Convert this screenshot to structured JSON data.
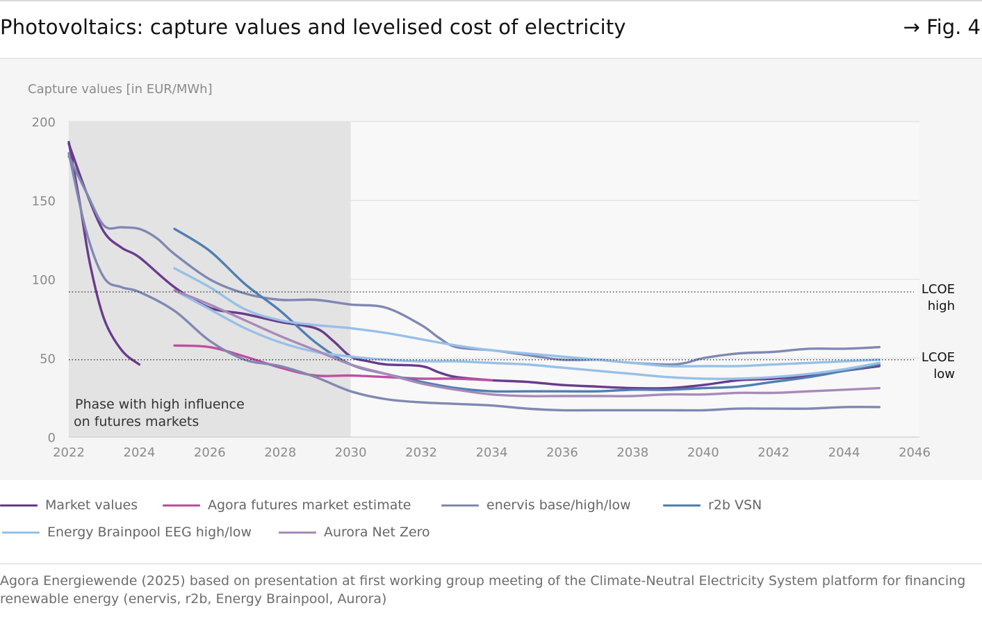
{
  "header": {
    "title": "Photovoltaics: capture values and levelised cost of electricity",
    "figure_ref": "→ Fig. 4"
  },
  "source": "Agora Energiewende (2025) based on presentation at first working group meeting of the Climate-Neutral Electricity System platform for financing renewable energy (enervis, r2b, Energy Brainpool, Aurora)",
  "chart_data": {
    "type": "line",
    "ylabel": "Capture values [in EUR/MWh]",
    "xlabel": "",
    "xlim": [
      2022,
      2046
    ],
    "ylim": [
      0,
      200
    ],
    "x_ticks": [
      2022,
      2024,
      2026,
      2028,
      2030,
      2032,
      2034,
      2036,
      2038,
      2040,
      2042,
      2044,
      2046
    ],
    "y_ticks": [
      0,
      50,
      100,
      150,
      200
    ],
    "grid": true,
    "shaded_region": {
      "x": [
        2022,
        2030
      ],
      "label_lines": [
        "Phase with high influence",
        "on futures markets"
      ]
    },
    "reference_lines": [
      {
        "y": 92,
        "label_lines": [
          "LCOE",
          "high"
        ]
      },
      {
        "y": 49,
        "label_lines": [
          "LCOE",
          "low"
        ]
      }
    ],
    "legend_items": [
      {
        "name": "Market values",
        "color": "#6a3a8c"
      },
      {
        "name": "Agora futures market estimate",
        "color": "#c04f9e"
      },
      {
        "name": "enervis base/high/low",
        "color": "#8088b2"
      },
      {
        "name": "r2b VSN",
        "color": "#4f7fb2"
      },
      {
        "name": "Energy Brainpool EEG high/low",
        "color": "#97c0e6"
      },
      {
        "name": "Aurora Net Zero",
        "color": "#a68bb8"
      }
    ],
    "series": [
      {
        "name": "Market values",
        "color": "#6a3a8c",
        "points": [
          [
            2022,
            187
          ],
          [
            2022.3,
            150
          ],
          [
            2022.6,
            110
          ],
          [
            2023,
            75
          ],
          [
            2023.5,
            55
          ],
          [
            2024,
            46
          ]
        ]
      },
      {
        "name": "Market values",
        "color": "#6a3a8c",
        "points": [
          [
            2022,
            186
          ],
          [
            2022.5,
            155
          ],
          [
            2023,
            130
          ],
          [
            2023.5,
            120
          ],
          [
            2024,
            114
          ],
          [
            2025,
            95
          ],
          [
            2026,
            82
          ],
          [
            2027,
            78
          ],
          [
            2028,
            73
          ],
          [
            2029,
            69
          ],
          [
            2029.5,
            61
          ],
          [
            2030,
            51
          ],
          [
            2030.5,
            48
          ],
          [
            2031,
            46
          ],
          [
            2032,
            45
          ],
          [
            2032.5,
            41
          ],
          [
            2033,
            38
          ],
          [
            2034,
            36
          ],
          [
            2035,
            35
          ],
          [
            2036,
            33
          ],
          [
            2037,
            32
          ],
          [
            2038,
            31
          ],
          [
            2039,
            31
          ],
          [
            2040,
            33
          ],
          [
            2041,
            36
          ],
          [
            2042,
            37
          ],
          [
            2043,
            39
          ],
          [
            2044,
            42
          ],
          [
            2045,
            45
          ]
        ]
      },
      {
        "name": "Agora futures market estimate",
        "color": "#c04f9e",
        "points": [
          [
            2025,
            58
          ],
          [
            2026,
            57
          ],
          [
            2027,
            51
          ],
          [
            2028,
            44
          ],
          [
            2029,
            39
          ],
          [
            2030,
            39
          ],
          [
            2031,
            38
          ],
          [
            2032,
            37
          ],
          [
            2033,
            37
          ],
          [
            2034,
            36
          ]
        ]
      },
      {
        "name": "enervis base/high/low",
        "color": "#8088b2",
        "points": [
          [
            2022,
            178
          ],
          [
            2022.5,
            155
          ],
          [
            2023,
            134
          ],
          [
            2023.5,
            133
          ],
          [
            2024,
            132
          ],
          [
            2024.5,
            126
          ],
          [
            2025,
            116
          ],
          [
            2026,
            100
          ],
          [
            2027,
            91
          ],
          [
            2028,
            87
          ],
          [
            2029,
            87
          ],
          [
            2030,
            84
          ],
          [
            2031,
            82
          ],
          [
            2032,
            71
          ],
          [
            2032.5,
            63
          ],
          [
            2033,
            57
          ],
          [
            2034,
            55
          ],
          [
            2035,
            52
          ],
          [
            2036,
            49
          ],
          [
            2037,
            49
          ],
          [
            2038,
            47
          ],
          [
            2039,
            46
          ],
          [
            2039.5,
            47
          ],
          [
            2040,
            50
          ],
          [
            2041,
            53
          ],
          [
            2042,
            54
          ],
          [
            2043,
            56
          ],
          [
            2044,
            56
          ],
          [
            2045,
            57
          ]
        ]
      },
      {
        "name": "enervis base/high/low",
        "color": "#8088b2",
        "points": [
          [
            2022,
            180
          ],
          [
            2022.5,
            130
          ],
          [
            2023,
            101
          ],
          [
            2023.5,
            95
          ],
          [
            2024,
            92
          ],
          [
            2025,
            80
          ],
          [
            2026,
            61
          ],
          [
            2027,
            49
          ],
          [
            2028,
            45
          ],
          [
            2029,
            38
          ],
          [
            2030,
            29
          ],
          [
            2031,
            24
          ],
          [
            2032,
            22
          ],
          [
            2033,
            21
          ],
          [
            2034,
            20
          ],
          [
            2035,
            18
          ],
          [
            2036,
            17
          ],
          [
            2037,
            17
          ],
          [
            2038,
            17
          ],
          [
            2039,
            17
          ],
          [
            2040,
            17
          ],
          [
            2041,
            18
          ],
          [
            2042,
            18
          ],
          [
            2043,
            18
          ],
          [
            2044,
            19
          ],
          [
            2045,
            19
          ]
        ]
      },
      {
        "name": "r2b VSN",
        "color": "#4f7fb2",
        "points": [
          [
            2025,
            132
          ],
          [
            2026,
            118
          ],
          [
            2027,
            97
          ],
          [
            2028,
            80
          ],
          [
            2029,
            60
          ],
          [
            2030,
            46
          ],
          [
            2031,
            40
          ],
          [
            2032,
            35
          ],
          [
            2033,
            31
          ],
          [
            2034,
            29
          ],
          [
            2035,
            29
          ],
          [
            2036,
            29
          ],
          [
            2037,
            29
          ],
          [
            2038,
            30
          ],
          [
            2039,
            30
          ],
          [
            2040,
            31
          ],
          [
            2041,
            32
          ],
          [
            2042,
            35
          ],
          [
            2043,
            38
          ],
          [
            2044,
            42
          ],
          [
            2045,
            46
          ]
        ]
      },
      {
        "name": "Energy Brainpool EEG high/low",
        "color": "#97c0e6",
        "points": [
          [
            2025,
            107
          ],
          [
            2026,
            95
          ],
          [
            2027,
            81
          ],
          [
            2028,
            74
          ],
          [
            2029,
            71
          ],
          [
            2030,
            69
          ],
          [
            2031,
            66
          ],
          [
            2032,
            62
          ],
          [
            2033,
            58
          ],
          [
            2034,
            55
          ],
          [
            2035,
            53
          ],
          [
            2036,
            51
          ],
          [
            2037,
            49
          ],
          [
            2038,
            47
          ],
          [
            2039,
            45
          ],
          [
            2040,
            45
          ],
          [
            2041,
            45
          ],
          [
            2042,
            46
          ],
          [
            2043,
            47
          ],
          [
            2044,
            48
          ],
          [
            2045,
            49
          ]
        ]
      },
      {
        "name": "Energy Brainpool EEG high/low",
        "color": "#97c0e6",
        "points": [
          [
            2025,
            93
          ],
          [
            2026,
            81
          ],
          [
            2027,
            69
          ],
          [
            2028,
            60
          ],
          [
            2029,
            54
          ],
          [
            2030,
            51
          ],
          [
            2031,
            49
          ],
          [
            2032,
            48
          ],
          [
            2033,
            48
          ],
          [
            2034,
            47
          ],
          [
            2035,
            46
          ],
          [
            2036,
            44
          ],
          [
            2037,
            42
          ],
          [
            2038,
            40
          ],
          [
            2039,
            38
          ],
          [
            2040,
            37
          ],
          [
            2041,
            37
          ],
          [
            2042,
            38
          ],
          [
            2043,
            40
          ],
          [
            2044,
            43
          ],
          [
            2045,
            47
          ]
        ]
      },
      {
        "name": "Aurora Net Zero",
        "color": "#a68bb8",
        "points": [
          [
            2025,
            93
          ],
          [
            2026,
            84
          ],
          [
            2027,
            74
          ],
          [
            2028,
            64
          ],
          [
            2029,
            55
          ],
          [
            2030,
            46
          ],
          [
            2031,
            40
          ],
          [
            2032,
            34
          ],
          [
            2033,
            30
          ],
          [
            2034,
            27
          ],
          [
            2035,
            26
          ],
          [
            2036,
            26
          ],
          [
            2037,
            26
          ],
          [
            2038,
            26
          ],
          [
            2039,
            27
          ],
          [
            2040,
            27
          ],
          [
            2041,
            28
          ],
          [
            2042,
            28
          ],
          [
            2043,
            29
          ],
          [
            2044,
            30
          ],
          [
            2045,
            31
          ]
        ]
      }
    ]
  }
}
